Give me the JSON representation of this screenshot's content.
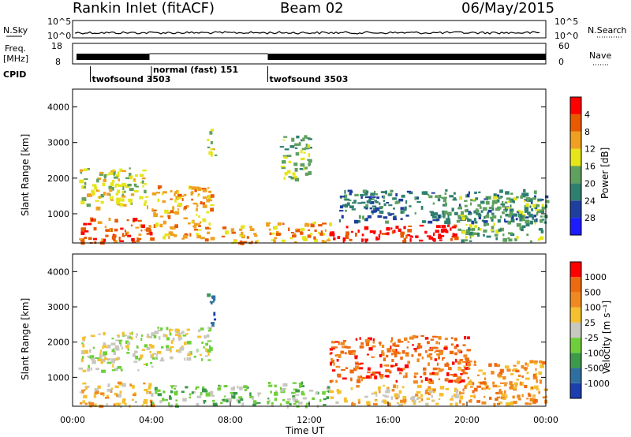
{
  "header": {
    "title": "Rankin Inlet (fitACF)",
    "beam": "Beam 02",
    "date": "06/May/2015"
  },
  "top_panels": {
    "nsky_label": "N.Sky",
    "nsky_ticks": [
      "10^5",
      "10^0"
    ],
    "nsearch_label": "N.Search",
    "nsearch_ticks": [
      "10^5",
      "10^0"
    ],
    "freq_label_1": "Freq.",
    "freq_label_2": "[MHz]",
    "freq_ticks": [
      "18",
      "8"
    ],
    "nave_label": "Nave",
    "nave_ticks": [
      "60",
      "0"
    ],
    "cpid_label": "CPID",
    "cpid_modes": [
      {
        "label": "twofsound 3503",
        "start": 0.9,
        "end": 4.0
      },
      {
        "label": "normal (fast) 151",
        "start": 4.0,
        "end": 9.9
      },
      {
        "label": "twofsound 3503",
        "start": 9.9,
        "end": 24.0
      }
    ]
  },
  "x_axis": {
    "label": "Time UT",
    "ticks": [
      "00:00",
      "04:00",
      "08:00",
      "12:00",
      "16:00",
      "20:00",
      "00:00"
    ],
    "range_hours": [
      0,
      24
    ]
  },
  "power_panel": {
    "ylabel": "Slant Range [km]",
    "yticks": [
      "1000",
      "2000",
      "3000",
      "4000"
    ],
    "colorbar_label": "Power [dB]",
    "colorbar_ticks": [
      "4",
      "8",
      "12",
      "16",
      "20",
      "24",
      "28"
    ],
    "colors": [
      "#1c1cff",
      "#1f3f9f",
      "#2f7f6f",
      "#5fa05f",
      "#e5e51a",
      "#f0a020",
      "#e85a00",
      "#ff0000"
    ]
  },
  "velocity_panel": {
    "ylabel": "Slant Range [km]",
    "yticks": [
      "1000",
      "2000",
      "3000",
      "4000"
    ],
    "colorbar_label": "Velocity [m s⁻¹]",
    "colorbar_ticks": [
      "1000",
      "500",
      "100",
      "25",
      "-25",
      "-100",
      "-500",
      "-1000"
    ],
    "colors": [
      "#1c3fb0",
      "#2f6fa0",
      "#3c9a4a",
      "#6fcf3a",
      "#c8c8c0",
      "#f5c030",
      "#f08a20",
      "#ee6a10",
      "#ff0000"
    ]
  },
  "chart_data": {
    "type": "heatmap",
    "title": "Rankin Inlet (fitACF)",
    "xlabel": "Time UT",
    "ylabel": "Slant Range [km]",
    "xlim": [
      0,
      24
    ],
    "ylim": [
      180,
      4500
    ],
    "power_regions": [
      {
        "t0": 0.3,
        "t1": 4.0,
        "r0": 200,
        "r1": 900,
        "level": 6
      },
      {
        "t0": 0.3,
        "t1": 3.8,
        "r0": 1200,
        "r1": 2300,
        "level": 4
      },
      {
        "t0": 4.0,
        "t1": 7.0,
        "r0": 300,
        "r1": 1800,
        "level": 5
      },
      {
        "t0": 6.8,
        "t1": 7.2,
        "r0": 2400,
        "r1": 3400,
        "level": 4
      },
      {
        "t0": 7.5,
        "t1": 9.5,
        "r0": 200,
        "r1": 700,
        "level": 5
      },
      {
        "t0": 9.8,
        "t1": 13.0,
        "r0": 200,
        "r1": 800,
        "level": 5
      },
      {
        "t0": 10.5,
        "t1": 12.0,
        "r0": 2000,
        "r1": 3300,
        "level": 3
      },
      {
        "t0": 13.0,
        "t1": 19.5,
        "r0": 250,
        "r1": 700,
        "level": 7
      },
      {
        "t0": 13.5,
        "t1": 24.0,
        "r0": 800,
        "r1": 1700,
        "level": 2
      },
      {
        "t0": 19.5,
        "t1": 24.0,
        "r0": 250,
        "r1": 1500,
        "level": 3
      }
    ],
    "velocity_regions": [
      {
        "t0": 0.3,
        "t1": 4.0,
        "r0": 1200,
        "r1": 2300,
        "level": 4
      },
      {
        "t0": 0.3,
        "t1": 4.0,
        "r0": 200,
        "r1": 900,
        "level": 5
      },
      {
        "t0": 4.0,
        "t1": 7.0,
        "r0": 1500,
        "r1": 2500,
        "level": 4
      },
      {
        "t0": 4.0,
        "t1": 9.5,
        "r0": 200,
        "r1": 800,
        "level": 3
      },
      {
        "t0": 6.8,
        "t1": 7.2,
        "r0": 2400,
        "r1": 3400,
        "level": 1
      },
      {
        "t0": 9.8,
        "t1": 13.0,
        "r0": 200,
        "r1": 900,
        "level": 3
      },
      {
        "t0": 13.0,
        "t1": 19.5,
        "r0": 250,
        "r1": 800,
        "level": 5
      },
      {
        "t0": 13.0,
        "t1": 20.0,
        "r0": 900,
        "r1": 2200,
        "level": 7
      },
      {
        "t0": 19.5,
        "t1": 24.0,
        "r0": 250,
        "r1": 1500,
        "level": 6
      }
    ]
  }
}
